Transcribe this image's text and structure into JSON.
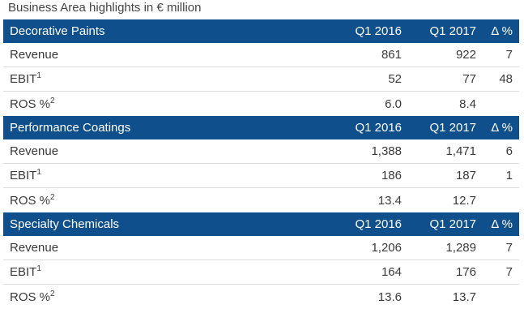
{
  "caption": "Business Area highlights in € million",
  "columns": {
    "a": "Q1 2016",
    "b": "Q1 2017",
    "d": "Δ %"
  },
  "sections": [
    {
      "title": "Decorative Paints",
      "rows": [
        {
          "label": "Revenue",
          "sup": "",
          "a": "861",
          "b": "922",
          "d": "7"
        },
        {
          "label": "EBIT",
          "sup": "1",
          "a": "52",
          "b": "77",
          "d": "48"
        },
        {
          "label": "ROS %",
          "sup": "2",
          "a": "6.0",
          "b": "8.4",
          "d": ""
        }
      ]
    },
    {
      "title": "Performance Coatings",
      "rows": [
        {
          "label": "Revenue",
          "sup": "",
          "a": "1,388",
          "b": "1,471",
          "d": "6"
        },
        {
          "label": "EBIT",
          "sup": "1",
          "a": "186",
          "b": "187",
          "d": "1"
        },
        {
          "label": "ROS %",
          "sup": "2",
          "a": "13.4",
          "b": "12.7",
          "d": ""
        }
      ]
    },
    {
      "title": "Specialty Chemicals",
      "rows": [
        {
          "label": "Revenue",
          "sup": "",
          "a": "1,206",
          "b": "1,289",
          "d": "7"
        },
        {
          "label": "EBIT",
          "sup": "1",
          "a": "164",
          "b": "176",
          "d": "7"
        },
        {
          "label": "ROS %",
          "sup": "2",
          "a": "13.6",
          "b": "13.7",
          "d": ""
        }
      ]
    }
  ]
}
